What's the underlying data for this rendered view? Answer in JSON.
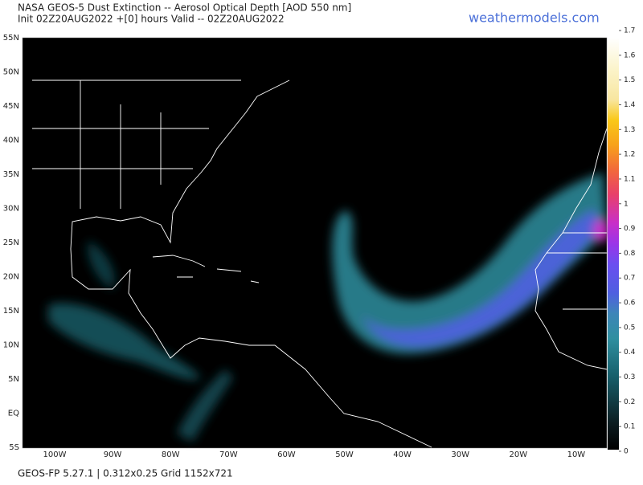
{
  "header": {
    "title": "NASA GEOS-5 Dust Extinction -- Aerosol Optical Depth [AOD 550 nm]",
    "subtitle": "Init 02Z20AUG2022 +[0] hours Valid -- 02Z20AUG2022",
    "watermark": "weathermodels.com"
  },
  "map": {
    "lat_labels": [
      "55N",
      "50N",
      "45N",
      "40N",
      "35N",
      "30N",
      "25N",
      "20N",
      "15N",
      "10N",
      "5N",
      "EQ",
      "5S"
    ],
    "lon_labels": [
      "100W",
      "90W",
      "80W",
      "70W",
      "60W",
      "50W",
      "40W",
      "30W",
      "20W",
      "10W"
    ]
  },
  "colorbar": {
    "ticks": [
      0,
      0.1,
      0.2,
      0.3,
      0.4,
      0.5,
      0.6,
      0.7,
      0.8,
      0.9,
      1,
      1.1,
      1.2,
      1.3,
      1.4,
      1.5,
      1.6,
      1.7
    ]
  },
  "footer": {
    "text": "GEOS-FP 5.27.1 | 0.312x0.25 Grid 1152x721"
  }
}
